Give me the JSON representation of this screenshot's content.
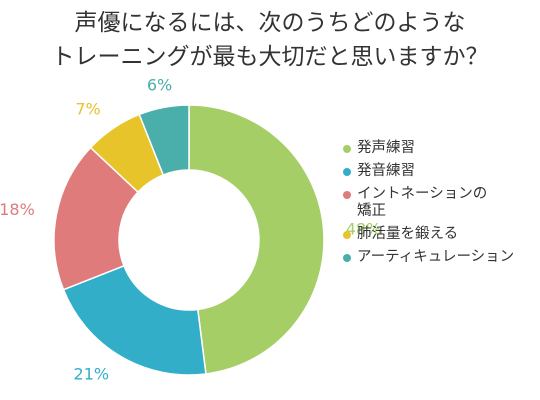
{
  "title_lines": [
    "声優になるには、次のうちどのような",
    "トレーニングが最も大切だと思いますか？"
  ],
  "chart_data": {
    "type": "pie",
    "donut": true,
    "title": "声優になるには、次のうちどのようなトレーニングが最も大切だと思いますか？",
    "categories": [
      "発声練習",
      "発音練習",
      "イントネーションの\n矯正",
      "肺活量を鍛える",
      "アーティキュレーション"
    ],
    "values": [
      48,
      21,
      18,
      7,
      6
    ],
    "labels": [
      "48%",
      "21%",
      "18%",
      "7%",
      "6%"
    ],
    "colors": [
      "#a5cf66",
      "#33aec9",
      "#e07b7b",
      "#e6c42a",
      "#4aaeaa"
    ],
    "legend_position": "right"
  }
}
